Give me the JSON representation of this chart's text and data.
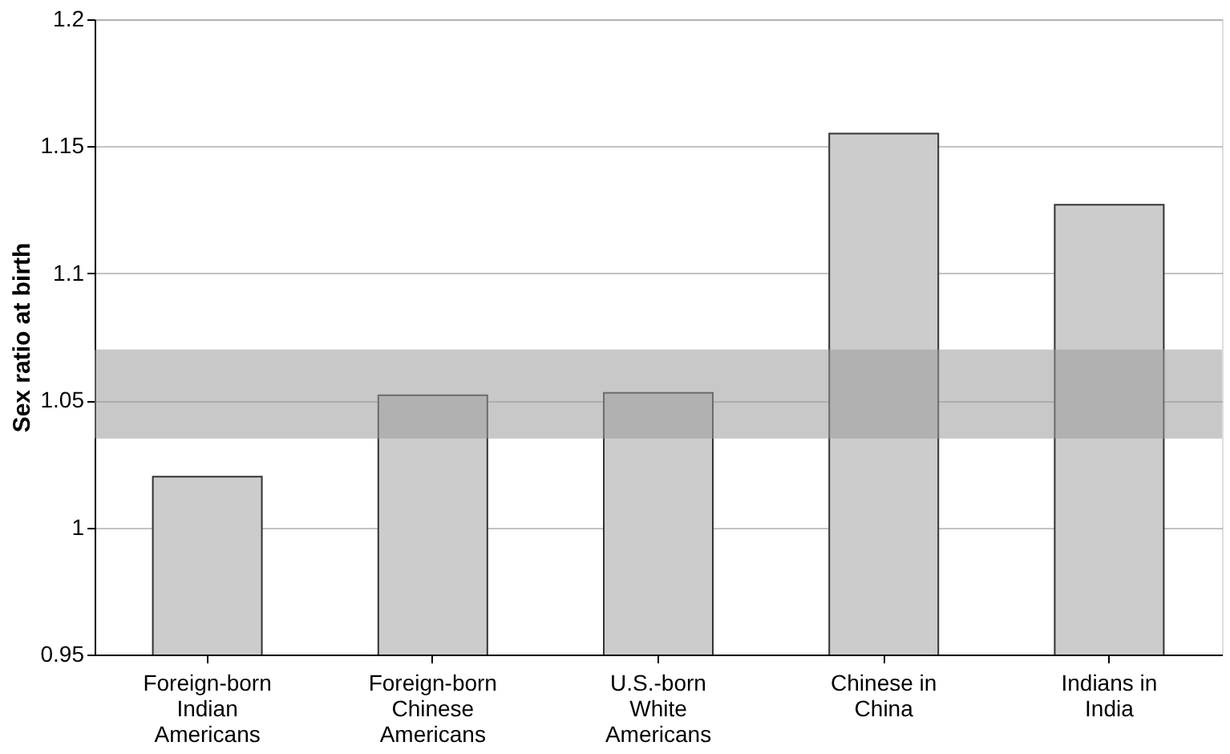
{
  "chart_data": {
    "type": "bar",
    "ylabel": "Sex ratio at birth",
    "categories": [
      "Foreign-born\nIndian\nAmericans",
      "Foreign-born\nChinese\nAmericans",
      "U.S.-born\nWhite\nAmericans",
      "Chinese in\nChina",
      "Indians in\nIndia"
    ],
    "values": [
      1.02,
      1.052,
      1.053,
      1.155,
      1.127
    ],
    "color": "#cccccc",
    "ylim": [
      0.95,
      1.2
    ],
    "yticks": [
      0.95,
      1,
      1.05,
      1.1,
      1.15,
      1.2
    ],
    "grid": "y",
    "bands": [
      {
        "axis": "y",
        "from": 1.035,
        "to": 1.07,
        "color": "#9a9a9a"
      }
    ]
  }
}
